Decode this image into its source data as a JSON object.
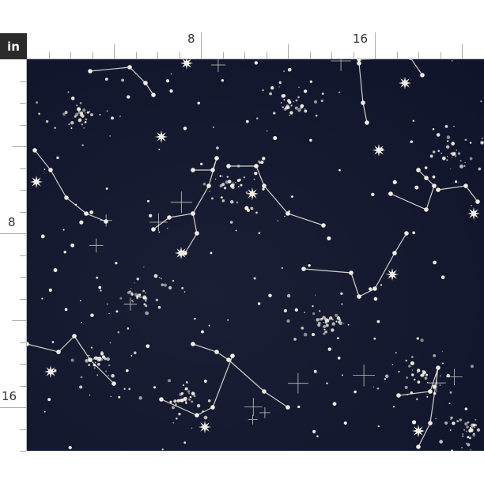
{
  "ruler": {
    "unit": "in",
    "top_labels": [
      "8",
      "16"
    ],
    "left_labels": [
      "8",
      "16"
    ]
  },
  "fabric": {
    "pattern": "constellations",
    "background_color": "#14182b",
    "star_color": "#f2efe2"
  }
}
